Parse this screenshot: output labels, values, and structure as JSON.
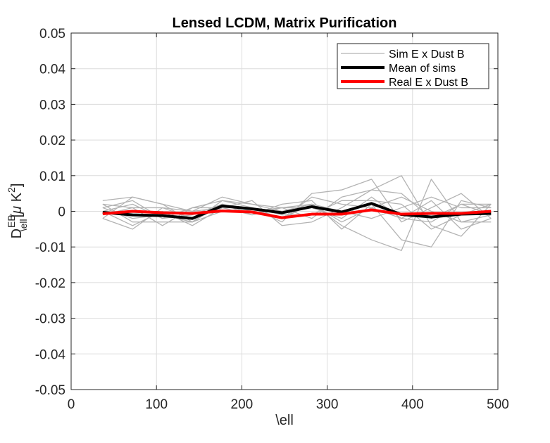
{
  "chart_data": {
    "type": "line",
    "title": "Lensed LCDM, Matrix Purification",
    "xlabel": "\\ell",
    "ylabel": {
      "base": "D",
      "superscript": "EB",
      "subscript": "\\ell",
      "unit_open": "[",
      "unit_mu": "μ",
      "unit_k": " K",
      "unit_exp": "2",
      "unit_close": "]"
    },
    "xlim": [
      0,
      500
    ],
    "ylim": [
      -0.05,
      0.05
    ],
    "x_ticks": [
      0,
      100,
      200,
      300,
      400,
      500
    ],
    "x_tick_labels": [
      "0",
      "100",
      "200",
      "300",
      "400",
      "500"
    ],
    "y_ticks": [
      -0.05,
      -0.04,
      -0.03,
      -0.02,
      -0.01,
      0,
      0.01,
      0.02,
      0.03,
      0.04,
      0.05
    ],
    "y_tick_labels": [
      "-0.05",
      "-0.04",
      "-0.03",
      "-0.02",
      "-0.01",
      "0",
      "0.01",
      "0.02",
      "0.03",
      "0.04",
      "0.05"
    ],
    "grid": true,
    "legend_position": "top-right",
    "x": [
      37,
      72,
      107,
      142,
      177,
      212,
      247,
      282,
      317,
      352,
      387,
      422,
      457,
      492
    ],
    "legend": [
      {
        "label": "Sim E x Dust B",
        "color": "#b3b3b3",
        "width": 1.3
      },
      {
        "label": "Mean of sims",
        "color": "#000000",
        "width": 4
      },
      {
        "label": "Real E x Dust B",
        "color": "#ff0000",
        "width": 4
      }
    ],
    "sims": [
      [
        0.003,
        0.004,
        0.002,
        -0.003,
        0.003,
        0.001,
        -0.003,
        0.005,
        0.006,
        0.009,
        -0.003,
        0.001,
        0.005,
        -0.002
      ],
      [
        -0.002,
        -0.005,
        0.001,
        0.0,
        0.004,
        0.002,
        0.001,
        -0.002,
        0.004,
        0.006,
        0.01,
        -0.004,
        -0.007,
        0.002
      ],
      [
        0.001,
        0.003,
        -0.002,
        -0.001,
        0.002,
        -0.001,
        0.002,
        0.003,
        -0.005,
        0.002,
        -0.008,
        -0.01,
        0.003,
        0.001
      ],
      [
        0.0,
        -0.004,
        0.0,
        -0.004,
        0.001,
        0.003,
        -0.004,
        -0.003,
        0.001,
        0.006,
        0.005,
        -0.002,
        0.002,
        -0.001
      ],
      [
        -0.001,
        0.001,
        -0.004,
        0.001,
        0.003,
        0.002,
        0.0,
        0.002,
        -0.004,
        -0.008,
        -0.011,
        0.009,
        -0.003,
        -0.003
      ],
      [
        0.002,
        -0.003,
        -0.003,
        -0.003,
        0.0,
        0.001,
        -0.001,
        -0.001,
        0.003,
        0.003,
        0.002,
        -0.005,
        -0.001,
        0.002
      ],
      [
        0.002,
        0.001,
        0.001,
        -0.002,
        0.002,
        0.0,
        0.001,
        0.001,
        -0.002,
        0.004,
        -0.002,
        0.003,
        -0.005,
        -0.002
      ],
      [
        -0.002,
        0.004,
        0.002,
        0.0,
        0.001,
        -0.001,
        0.001,
        0.002,
        0.0,
        -0.002,
        0.001,
        0.004,
        0.001,
        0.001
      ],
      [
        0.001,
        -0.002,
        -0.001,
        -0.003,
        0.002,
        0.0,
        -0.002,
        0.004,
        0.002,
        0.001,
        0.004,
        0.0,
        -0.003,
        -0.001
      ],
      [
        0.0,
        0.002,
        -0.002,
        0.001,
        0.001,
        0.001,
        -0.002,
        0.002,
        -0.003,
        0.001,
        -0.002,
        -0.003,
        0.002,
        0.002
      ]
    ],
    "mean": [
      -0.0003,
      -0.001,
      -0.0012,
      -0.002,
      0.0015,
      0.0007,
      -0.0004,
      0.0013,
      -0.0002,
      0.0022,
      -0.0009,
      -0.0016,
      -0.0008,
      -0.0006
    ],
    "real": [
      -0.0007,
      0.0,
      -0.0004,
      -0.0006,
      0.0001,
      -0.0002,
      -0.0018,
      -0.0008,
      -0.0008,
      0.0004,
      -0.0008,
      -0.0006,
      -0.0006,
      0.0
    ]
  }
}
